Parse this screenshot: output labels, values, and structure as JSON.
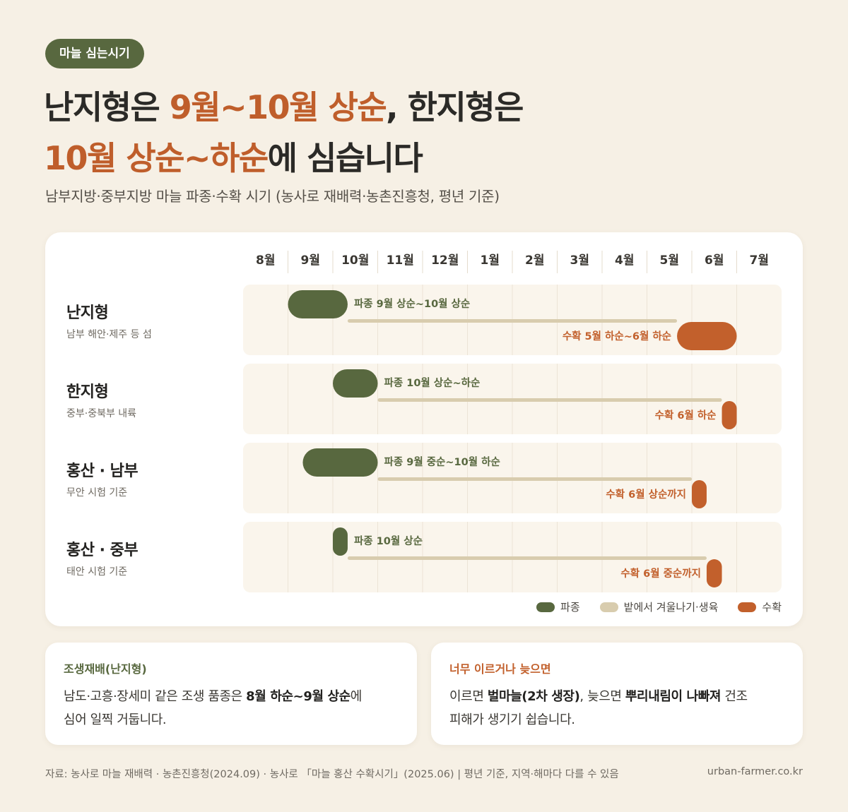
{
  "badge": "마늘 심는시기",
  "headline": {
    "l1_a": "난지형은 ",
    "l1_b": "9월~10월 상순",
    "l1_c": ", 한지형은",
    "l2_a": "10월 상순~하순",
    "l2_b": "에 심습니다"
  },
  "subtitle": "남부지방·중부지방 마늘 파종·수확 시기 (농사로 재배력·농촌진흥청, 평년 기준)",
  "colors": {
    "sowing": "#58683f",
    "growing": "#d8ccae",
    "harvest": "#c2602c",
    "row_bg": "#faf5ec"
  },
  "chart_data": {
    "type": "gantt",
    "months": [
      "8월",
      "9월",
      "10월",
      "11월",
      "12월",
      "1월",
      "2월",
      "3월",
      "4월",
      "5월",
      "6월",
      "7월"
    ],
    "rows": [
      {
        "name": "난지형",
        "desc": "남부 해안·제주 등 섬",
        "sow": [
          1.0,
          2.33
        ],
        "grow": [
          2.33,
          9.67
        ],
        "harvest": [
          9.67,
          11.0
        ],
        "sow_label": "파종 9월 상순~10월 상순",
        "harvest_label": "수확 5월 하순~6월 하순"
      },
      {
        "name": "한지형",
        "desc": "중부·중북부 내륙",
        "sow": [
          2.0,
          3.0
        ],
        "grow": [
          3.0,
          10.67
        ],
        "harvest": [
          10.67,
          11.0
        ],
        "sow_label": "파종 10월 상순~하순",
        "harvest_label": "수확 6월 하순"
      },
      {
        "name": "홍산 · 남부",
        "desc": "무안 시험 기준",
        "sow": [
          1.33,
          3.0
        ],
        "grow": [
          3.0,
          10.0
        ],
        "harvest": [
          10.0,
          10.33
        ],
        "sow_label": "파종 9월 중순~10월 하순",
        "harvest_label": "수확 6월 상순까지"
      },
      {
        "name": "홍산 · 중부",
        "desc": "태안 시험 기준",
        "sow": [
          2.0,
          2.33
        ],
        "grow": [
          2.33,
          10.33
        ],
        "harvest": [
          10.33,
          10.67
        ],
        "sow_label": "파종 10월 상순",
        "harvest_label": "수확 6월 중순까지"
      }
    ],
    "legend": [
      "파종",
      "밭에서 겨울나기·생육",
      "수확"
    ]
  },
  "notes": [
    {
      "title": "조생재배(난지형)",
      "t1": "남도·고흥·장세미 같은 조생 품종은 ",
      "b1": "8월 하순~9월 상순",
      "t2": "에",
      "t3": "심어 일찍 거둡니다."
    },
    {
      "title": "너무 이르거나 늦으면",
      "t1": "이르면 ",
      "b1": "벌마늘(2차 생장)",
      "t2": ", 늦으면 ",
      "b2": "뿌리내림이 나빠져",
      "t3": " 건조",
      "t4": "피해가 생기기 쉽습니다."
    }
  ],
  "footer": {
    "source": "자료: 농사로 마늘 재배력 · 농촌진흥청(2024.09) · 농사로 「마늘 홍산 수확시기」(2025.06) | 평년 기준, 지역·해마다 다를 수 있음",
    "site": "urban-farmer.co.kr"
  }
}
